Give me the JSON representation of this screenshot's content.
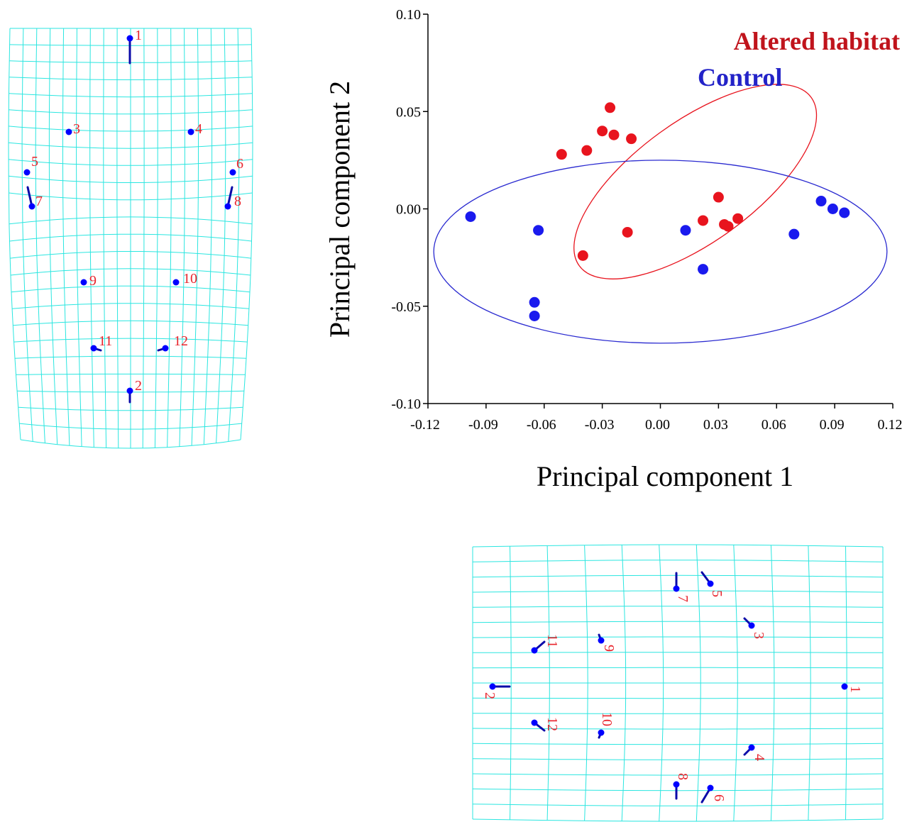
{
  "chart_data": {
    "type": "scatter",
    "xlabel": "Principal component 1",
    "ylabel": "Principal component 2",
    "xlim": [
      -0.12,
      0.12
    ],
    "ylim": [
      -0.1,
      0.1
    ],
    "x_ticks": [
      "-0.12",
      "-0.09",
      "-0.06",
      "-0.03",
      "0.00",
      "0.03",
      "0.06",
      "0.09",
      "0.12"
    ],
    "x_tick_values": [
      -0.12,
      -0.09,
      -0.06,
      -0.03,
      0.0,
      0.03,
      0.06,
      0.09,
      0.12
    ],
    "y_ticks": [
      "0.10",
      "0.05",
      "0.00",
      "-0.05",
      "-0.10"
    ],
    "y_tick_values": [
      0.1,
      0.05,
      0.0,
      -0.05,
      -0.1
    ],
    "legend_position": "top-right",
    "series": [
      {
        "name": "Altered habitat",
        "color": "#e8141e",
        "points": [
          [
            -0.051,
            0.028
          ],
          [
            -0.038,
            0.03
          ],
          [
            -0.03,
            0.04
          ],
          [
            -0.026,
            0.052
          ],
          [
            -0.024,
            0.038
          ],
          [
            -0.015,
            0.036
          ],
          [
            -0.04,
            -0.024
          ],
          [
            -0.017,
            -0.012
          ],
          [
            0.022,
            -0.006
          ],
          [
            0.03,
            0.006
          ],
          [
            0.033,
            -0.008
          ],
          [
            0.035,
            -0.009
          ],
          [
            0.04,
            -0.005
          ]
        ],
        "ellipse": {
          "center": [
            0.018,
            0.014
          ],
          "semi_axes": [
            0.074,
            0.031
          ],
          "angle_deg": -36
        }
      },
      {
        "name": "Control",
        "color": "#1a1aee",
        "points": [
          [
            -0.098,
            -0.004
          ],
          [
            -0.063,
            -0.011
          ],
          [
            -0.065,
            -0.048
          ],
          [
            -0.065,
            -0.055
          ],
          [
            0.013,
            -0.011
          ],
          [
            0.022,
            -0.031
          ],
          [
            0.069,
            -0.013
          ],
          [
            0.083,
            0.004
          ],
          [
            0.089,
            0.0
          ],
          [
            0.095,
            -0.002
          ]
        ],
        "ellipse": {
          "center": [
            0.0,
            -0.022
          ],
          "semi_axes": [
            0.117,
            0.047
          ],
          "angle_deg": 0
        }
      }
    ]
  },
  "deformation_grids": {
    "top_left": {
      "landmarks": [
        {
          "label": "1",
          "vector": "up"
        },
        {
          "label": "2",
          "vector": "down"
        },
        {
          "label": "3",
          "vector": "none"
        },
        {
          "label": "4",
          "vector": "none"
        },
        {
          "label": "5",
          "vector": "none"
        },
        {
          "label": "6",
          "vector": "none"
        },
        {
          "label": "7",
          "vector": "up"
        },
        {
          "label": "8",
          "vector": "up"
        },
        {
          "label": "9",
          "vector": "none"
        },
        {
          "label": "10",
          "vector": "none"
        },
        {
          "label": "11",
          "vector": "short"
        },
        {
          "label": "12",
          "vector": "short"
        }
      ]
    },
    "bottom_right": {
      "landmarks": [
        {
          "label": "1",
          "vector": "none"
        },
        {
          "label": "2",
          "vector": "right"
        },
        {
          "label": "3",
          "vector": "up-left"
        },
        {
          "label": "4",
          "vector": "down-left"
        },
        {
          "label": "5",
          "vector": "up-left"
        },
        {
          "label": "6",
          "vector": "down-left"
        },
        {
          "label": "7",
          "vector": "up"
        },
        {
          "label": "8",
          "vector": "down"
        },
        {
          "label": "9",
          "vector": "short"
        },
        {
          "label": "10",
          "vector": "short"
        },
        {
          "label": "11",
          "vector": "up-right"
        },
        {
          "label": "12",
          "vector": "down-right"
        }
      ]
    }
  }
}
